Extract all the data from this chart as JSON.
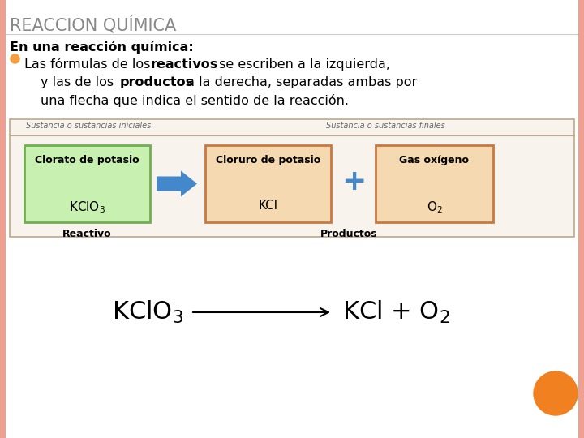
{
  "bg_color": "#ffffff",
  "border_color": "#f0a090",
  "title": "REACCION QUÍMICA",
  "title_color": "#888888",
  "title_fontsize": 15,
  "intro_text": "En una reacción química:",
  "bullet_color": "#f4a040",
  "box1_bg": "#c8f0b0",
  "box1_border": "#70b050",
  "box1_title": "Clorato de potasio",
  "box1_formula": "KClO$_3$",
  "box2_bg": "#f5d9b0",
  "box2_border": "#c87840",
  "box2_title": "Cloruro de potasio",
  "box2_formula": "KCl",
  "box3_bg": "#f5d9b0",
  "box3_border": "#c87840",
  "box3_title": "Gas oxígeno",
  "box3_formula": "O$_2$",
  "arrow_color": "#4488cc",
  "plus_color": "#4488cc",
  "label_top_left": "Sustancia o sustancias iniciales",
  "label_top_right": "Sustancia o sustancias finales",
  "label_bottom_left": "Reactivo",
  "label_bottom_right": "Productos",
  "diag_bg": "#f8f3ec",
  "diag_border": "#c0a888",
  "font_color": "#000000",
  "circle_color": "#f08020"
}
